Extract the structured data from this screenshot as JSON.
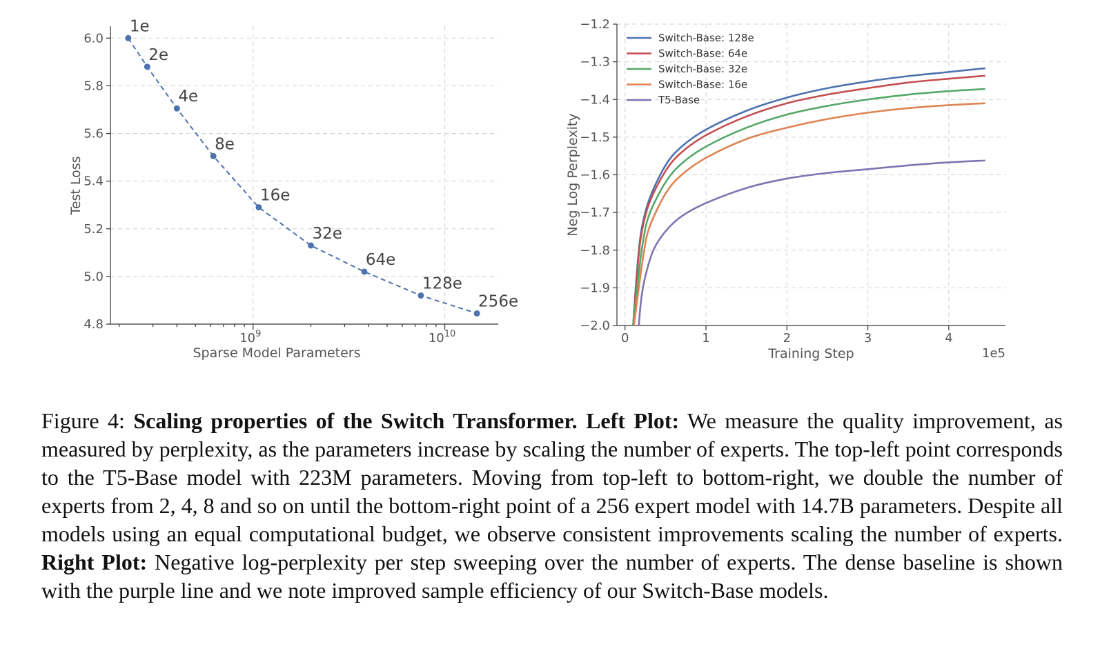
{
  "chart_data": [
    {
      "type": "scatter",
      "xlabel": "Sparse Model Parameters",
      "ylabel": "Test Loss",
      "xscale": "log",
      "xlim": [
        180000000,
        19000000000
      ],
      "ylim": [
        4.8,
        6.05
      ],
      "xticks": [
        {
          "value": 1000000000,
          "base": "10",
          "exp": "9"
        },
        {
          "value": 10000000000,
          "base": "10",
          "exp": "10"
        }
      ],
      "yticks": [
        "4.8",
        "5.0",
        "5.2",
        "5.4",
        "5.6",
        "5.8",
        "6.0"
      ],
      "color": "#4c72b0",
      "line_style": "dashed",
      "grid": true,
      "points": [
        {
          "label": "1e",
          "x": 223000000,
          "y": 6.0
        },
        {
          "label": "2e",
          "x": 280000000,
          "y": 5.88
        },
        {
          "label": "4e",
          "x": 400000000,
          "y": 5.705
        },
        {
          "label": "8e",
          "x": 620000000,
          "y": 5.505
        },
        {
          "label": "16e",
          "x": 1070000000,
          "y": 5.29
        },
        {
          "label": "32e",
          "x": 2000000000,
          "y": 5.13
        },
        {
          "label": "64e",
          "x": 3800000000,
          "y": 5.02
        },
        {
          "label": "128e",
          "x": 7500000000,
          "y": 4.92
        },
        {
          "label": "256e",
          "x": 14700000000,
          "y": 4.845
        }
      ]
    },
    {
      "type": "line",
      "xlabel": "Training Step",
      "ylabel": "Neg Log Perplexity",
      "xlim": [
        -0.1,
        4.7
      ],
      "ylim": [
        -2.0,
        -1.2
      ],
      "x_multiplier": "1e5",
      "xticks": [
        "0",
        "1",
        "2",
        "3",
        "4"
      ],
      "yticks": [
        "−1.2",
        "−1.3",
        "−1.4",
        "−1.5",
        "−1.6",
        "−1.7",
        "−1.8",
        "−1.9",
        "−2.0"
      ],
      "legend_position": "top-left",
      "grid": true,
      "series": [
        {
          "name": "Switch-Base: 128e",
          "color": "#4c72b0",
          "points": [
            [
              0.1,
              -2.0
            ],
            [
              0.15,
              -1.85
            ],
            [
              0.2,
              -1.75
            ],
            [
              0.3,
              -1.665
            ],
            [
              0.5,
              -1.575
            ],
            [
              0.7,
              -1.525
            ],
            [
              1.0,
              -1.48
            ],
            [
              1.5,
              -1.43
            ],
            [
              2.0,
              -1.395
            ],
            [
              2.5,
              -1.37
            ],
            [
              3.0,
              -1.352
            ],
            [
              3.5,
              -1.338
            ],
            [
              4.0,
              -1.327
            ],
            [
              4.45,
              -1.317
            ]
          ]
        },
        {
          "name": "Switch-Base: 64e",
          "color": "#c44e52",
          "points": [
            [
              0.1,
              -2.0
            ],
            [
              0.15,
              -1.86
            ],
            [
              0.2,
              -1.76
            ],
            [
              0.3,
              -1.675
            ],
            [
              0.5,
              -1.59
            ],
            [
              0.7,
              -1.54
            ],
            [
              1.0,
              -1.495
            ],
            [
              1.5,
              -1.445
            ],
            [
              2.0,
              -1.41
            ],
            [
              2.5,
              -1.387
            ],
            [
              3.0,
              -1.37
            ],
            [
              3.5,
              -1.355
            ],
            [
              4.0,
              -1.345
            ],
            [
              4.45,
              -1.337
            ]
          ]
        },
        {
          "name": "Switch-Base: 32e",
          "color": "#55a868",
          "points": [
            [
              0.1,
              -2.0
            ],
            [
              0.16,
              -1.88
            ],
            [
              0.22,
              -1.78
            ],
            [
              0.3,
              -1.705
            ],
            [
              0.5,
              -1.62
            ],
            [
              0.7,
              -1.57
            ],
            [
              1.0,
              -1.525
            ],
            [
              1.5,
              -1.475
            ],
            [
              2.0,
              -1.44
            ],
            [
              2.5,
              -1.417
            ],
            [
              3.0,
              -1.4
            ],
            [
              3.5,
              -1.387
            ],
            [
              4.0,
              -1.378
            ],
            [
              4.45,
              -1.372
            ]
          ]
        },
        {
          "name": "Switch-Base: 16e",
          "color": "#dd8452",
          "points": [
            [
              0.11,
              -2.0
            ],
            [
              0.17,
              -1.9
            ],
            [
              0.23,
              -1.81
            ],
            [
              0.3,
              -1.74
            ],
            [
              0.5,
              -1.65
            ],
            [
              0.7,
              -1.6
            ],
            [
              1.0,
              -1.555
            ],
            [
              1.5,
              -1.505
            ],
            [
              2.0,
              -1.475
            ],
            [
              2.5,
              -1.452
            ],
            [
              3.0,
              -1.435
            ],
            [
              3.5,
              -1.423
            ],
            [
              4.0,
              -1.415
            ],
            [
              4.45,
              -1.41
            ]
          ]
        },
        {
          "name": "T5-Base",
          "color": "#8172b2",
          "points": [
            [
              0.17,
              -2.0
            ],
            [
              0.2,
              -1.93
            ],
            [
              0.25,
              -1.87
            ],
            [
              0.35,
              -1.8
            ],
            [
              0.5,
              -1.75
            ],
            [
              0.7,
              -1.71
            ],
            [
              1.0,
              -1.675
            ],
            [
              1.5,
              -1.635
            ],
            [
              2.0,
              -1.61
            ],
            [
              2.5,
              -1.595
            ],
            [
              3.0,
              -1.585
            ],
            [
              3.5,
              -1.575
            ],
            [
              4.0,
              -1.567
            ],
            [
              4.45,
              -1.562
            ]
          ]
        }
      ]
    }
  ],
  "caption": {
    "lead": "Figure 4: ",
    "bold1": "Scaling properties of the Switch Transformer. Left Plot:",
    "text1": " We measure the quality improvement, as measured by perplexity, as the parameters increase by scaling the number of experts. The top-left point corresponds to the T5-Base model with 223M parameters. Moving from top-left to bottom-right, we double the number of experts from 2, 4, 8 and so on until the bottom-right point of a 256 expert model with 14.7B parameters.  Despite all models using an equal computational budget, we observe consistent improvements scaling the number of experts. ",
    "bold2": "Right Plot:",
    "text2": " Negative log-perplexity per step sweeping over the number of experts. The dense baseline is shown with the purple line and we note improved sample efficiency of our Switch-Base models."
  }
}
